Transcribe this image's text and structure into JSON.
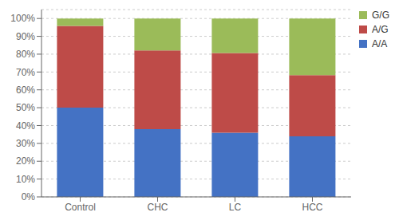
{
  "chart_data": {
    "type": "bar",
    "stacked": true,
    "categories": [
      "Control",
      "CHC",
      "LC",
      "HCC"
    ],
    "series": [
      {
        "name": "A/A",
        "color": "#4472C4",
        "values": [
          50.0,
          38.0,
          36.0,
          34.0
        ]
      },
      {
        "name": "A/G",
        "color": "#BE4B48",
        "values": [
          45.8,
          44.1,
          44.6,
          34.2
        ]
      },
      {
        "name": "G/G",
        "color": "#9BBB59",
        "values": [
          4.2,
          17.9,
          19.4,
          31.8
        ]
      }
    ],
    "ylim": [
      0,
      105
    ],
    "yticks": [
      {
        "value": 0,
        "label": "0%"
      },
      {
        "value": 10,
        "label": "10%"
      },
      {
        "value": 20,
        "label": "20%"
      },
      {
        "value": 30,
        "label": "30%"
      },
      {
        "value": 40,
        "label": "40%"
      },
      {
        "value": 50,
        "label": "50%"
      },
      {
        "value": 60,
        "label": "60%"
      },
      {
        "value": 70,
        "label": "70%"
      },
      {
        "value": 80,
        "label": "80%"
      },
      {
        "value": 90,
        "label": "90%"
      },
      {
        "value": 100,
        "label": "100%"
      }
    ],
    "grid": true,
    "legend": "upper right"
  }
}
